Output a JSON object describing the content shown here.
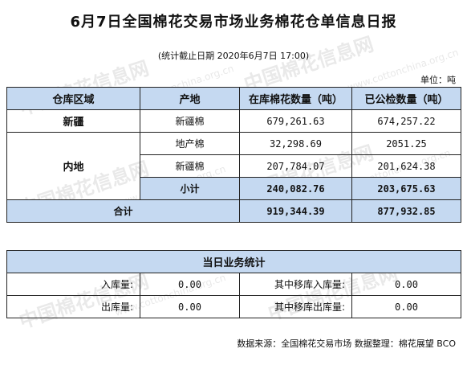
{
  "title": "6月7日全国棉花交易市场业务棉花仓单信息日报",
  "subtitle": "(统计截止日期 2020年6月7日 17:00)",
  "unit": "单位：吨",
  "watermark": {
    "text": "中国棉花信息网",
    "url": "www.cottonchina.org.cn"
  },
  "warehouse_table": {
    "headers": [
      "仓库区域",
      "产地",
      "在库棉花数量（吨）",
      "已公检数量（吨）"
    ],
    "xinjiang": {
      "region": "新疆",
      "origin": "新疆棉",
      "in_stock": "679,261.63",
      "inspected": "674,257.22"
    },
    "inland": {
      "region": "内地",
      "rows": [
        {
          "origin": "地产棉",
          "in_stock": "32,298.69",
          "inspected": "2051.25"
        },
        {
          "origin": "新疆棉",
          "in_stock": "207,784.07",
          "inspected": "201,624.38"
        }
      ],
      "subtotal_label": "小计",
      "subtotal_in_stock": "240,082.76",
      "subtotal_inspected": "203,675.63"
    },
    "total_label": "合计",
    "total_in_stock": "919,344.39",
    "total_inspected": "877,932.85"
  },
  "daily_stats": {
    "title": "当日业务统计",
    "rows": [
      {
        "label1": "入库量:",
        "value1": "0.00",
        "label2": "其中移库入库量:",
        "value2": "0.00"
      },
      {
        "label1": "出库量:",
        "value1": "0.00",
        "label2": "其中移库出库量:",
        "value2": "0.00"
      }
    ]
  },
  "footer": "数据来源：全国棉花交易市场 数据整理：棉花展望 BCO"
}
